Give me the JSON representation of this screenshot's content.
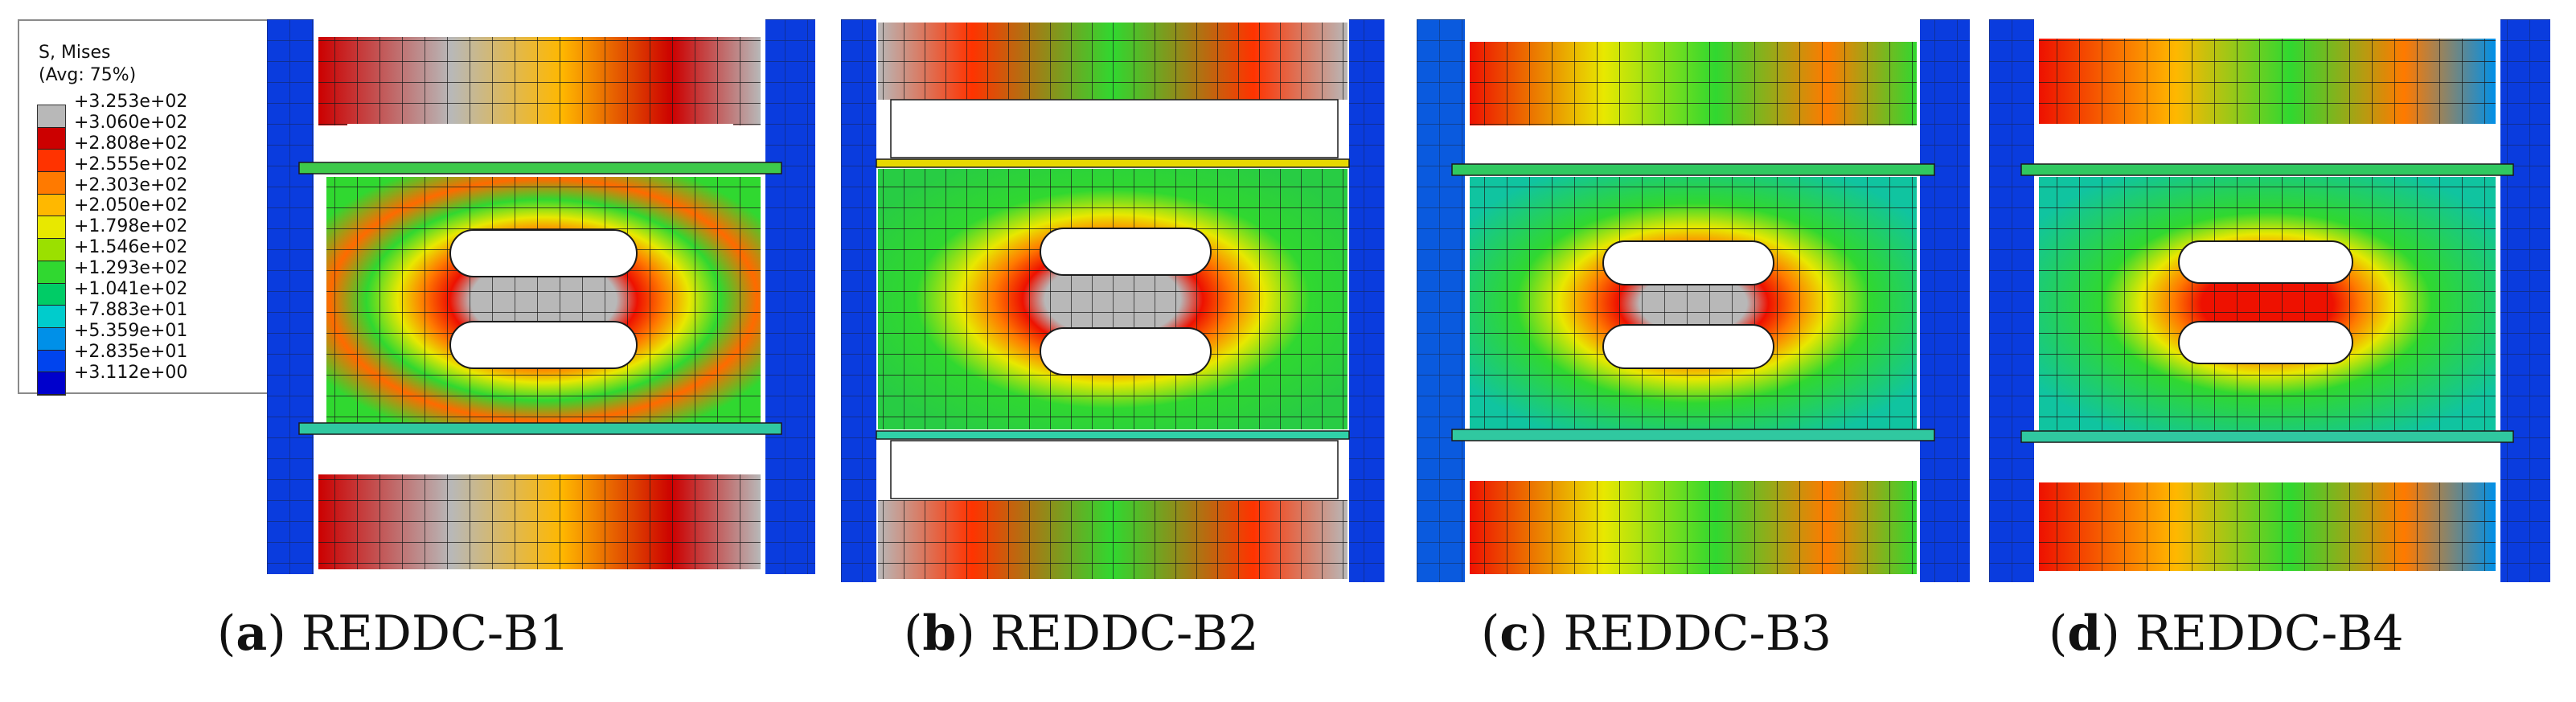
{
  "legend": {
    "title_line1": "S, Mises",
    "title_line2": "(Avg: 75%)",
    "colors": [
      "#b8b8b8",
      "#cc0000",
      "#ff3300",
      "#ff7a00",
      "#ffb800",
      "#e8e800",
      "#9be000",
      "#30d830",
      "#00cc66",
      "#00cccc",
      "#0090e8",
      "#0044ee",
      "#0000cc"
    ],
    "values": [
      "+3.253e+02",
      "+3.060e+02",
      "+2.808e+02",
      "+2.555e+02",
      "+2.303e+02",
      "+2.050e+02",
      "+1.798e+02",
      "+1.546e+02",
      "+1.293e+02",
      "+1.041e+02",
      "+7.883e+01",
      "+5.359e+01",
      "+2.835e+01",
      "+3.112e+00"
    ]
  },
  "panels": [
    {
      "letter": "a",
      "label": "REDDC-B1"
    },
    {
      "letter": "b",
      "label": "REDDC-B2"
    },
    {
      "letter": "c",
      "label": "REDDC-B3"
    },
    {
      "letter": "d",
      "label": "REDDC-B4"
    }
  ]
}
